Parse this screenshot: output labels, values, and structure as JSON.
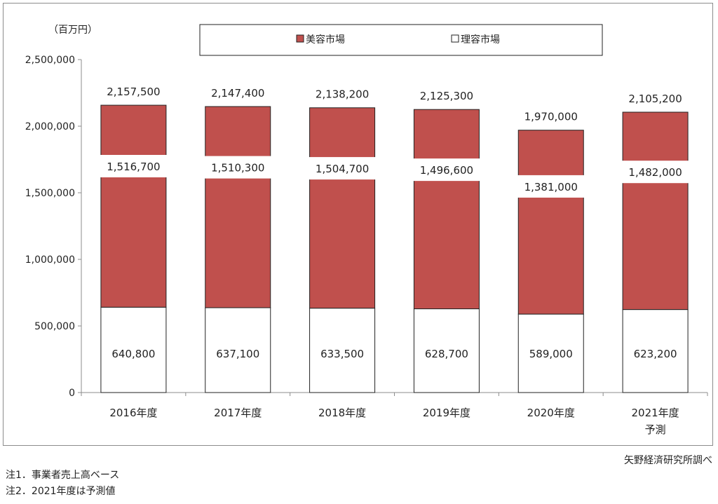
{
  "chart_data": {
    "type": "bar",
    "stacked": true,
    "unit_label": "（百万円）",
    "categories": [
      "2016年度",
      "2017年度",
      "2018年度",
      "2019年度",
      "2020年度",
      "2021年度"
    ],
    "category_sublabels": [
      "",
      "",
      "",
      "",
      "",
      "予測"
    ],
    "series": [
      {
        "name": "理容市場",
        "color": "#ffffff",
        "values": [
          640800,
          637100,
          633500,
          628700,
          589000,
          623200
        ]
      },
      {
        "name": "美容市場",
        "color": "#c0504d",
        "values": [
          1516700,
          1510300,
          1504700,
          1496600,
          1381000,
          1482000
        ]
      }
    ],
    "totals": [
      2157500,
      2147400,
      2138200,
      2125300,
      1970000,
      2105200
    ],
    "data_labels": {
      "barber": [
        "640,800",
        "637,100",
        "633,500",
        "628,700",
        "589,000",
        "623,200"
      ],
      "beauty": [
        "1,516,700",
        "1,510,300",
        "1,504,700",
        "1,496,600",
        "1,381,000",
        "1,482,000"
      ],
      "total": [
        "2,157,500",
        "2,147,400",
        "2,138,200",
        "2,125,300",
        "1,970,000",
        "2,105,200"
      ]
    },
    "legend_labels": [
      "美容市場",
      "理容市場"
    ],
    "legend_placement": "top",
    "ylim": [
      0,
      2500000
    ],
    "yticks": [
      0,
      500000,
      1000000,
      1500000,
      2000000,
      2500000
    ],
    "ytick_labels": [
      "0",
      "500,000",
      "1,000,000",
      "1,500,000",
      "2,000,000",
      "2,500,000"
    ],
    "grid": false,
    "source": "矢野経済研究所調べ"
  },
  "notes": [
    "注1．事業者売上高ベース",
    "注2．2021年度は予測値"
  ]
}
